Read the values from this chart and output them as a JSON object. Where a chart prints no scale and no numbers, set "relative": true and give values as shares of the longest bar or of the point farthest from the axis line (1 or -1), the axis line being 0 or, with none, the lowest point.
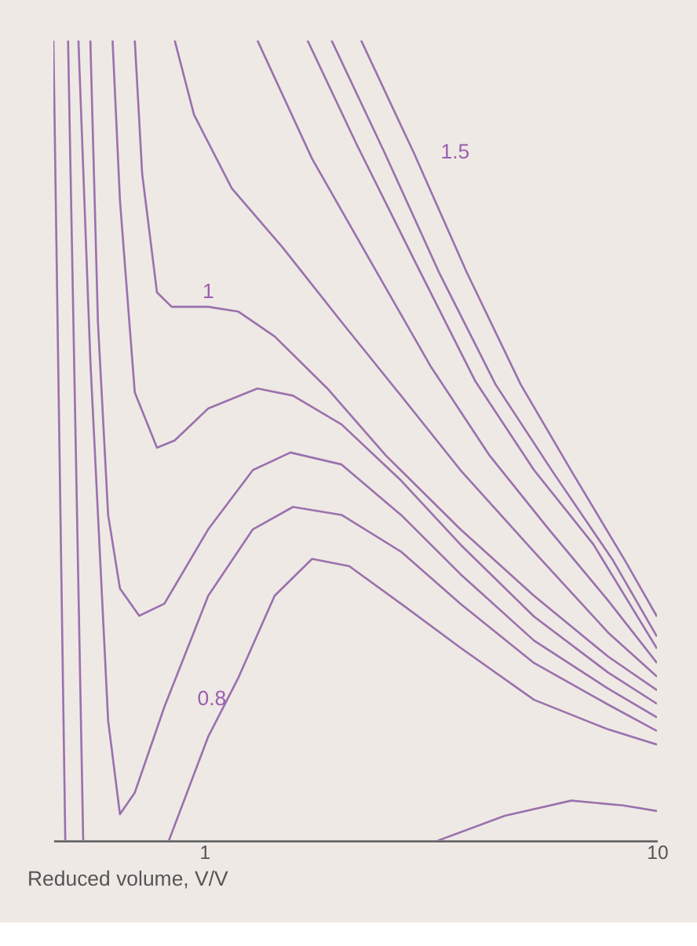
{
  "chart_data": {
    "type": "line",
    "relative": true,
    "xlabel": "Reduced volume, V/V",
    "log": "x",
    "xlim": [
      0.464,
      10
    ],
    "xticks": [
      1,
      10
    ],
    "grid": false,
    "legend": false,
    "marker": "none",
    "line_style": "solid",
    "series": [
      {
        "color": "#9a72ad",
        "x": [
          0.464,
          0.493,
          1.0,
          3.28,
          4.61,
          6.47,
          8.41,
          10
        ],
        "values": [
          1,
          0,
          null,
          0,
          0.031,
          0.05,
          0.044,
          0.037
        ]
      },
      {
        "name": "0.8",
        "color": "#9a72ad",
        "x": [
          0.5,
          0.54,
          0.7,
          0.835,
          1.02,
          1.19,
          1.43,
          1.73,
          2.09,
          2.72,
          3.68,
          5.35,
          7.8,
          10
        ],
        "values": [
          1,
          0,
          null,
          0,
          0.13,
          0.204,
          0.306,
          0.352,
          0.343,
          0.296,
          0.241,
          0.176,
          0.139,
          0.12
        ]
      },
      {
        "color": "#9a72ad",
        "x": [
          0.527,
          0.56,
          0.613,
          0.651,
          0.702,
          0.816,
          1.02,
          1.28,
          1.57,
          2.01,
          2.72,
          3.68,
          5.35,
          7.8,
          10
        ],
        "values": [
          1,
          0.6,
          0.15,
          0.033,
          0.06,
          0.167,
          0.306,
          0.389,
          0.417,
          0.407,
          0.361,
          0.296,
          0.222,
          0.17,
          0.137
        ]
      },
      {
        "color": "#9a72ad",
        "x": [
          0.56,
          0.582,
          0.613,
          0.651,
          0.718,
          0.816,
          1.02,
          1.28,
          1.55,
          2.01,
          2.72,
          3.68,
          5.35,
          7.8,
          10
        ],
        "values": [
          1,
          0.648,
          0.407,
          0.315,
          0.281,
          0.296,
          0.389,
          0.463,
          0.485,
          0.47,
          0.407,
          0.333,
          0.25,
          0.19,
          0.154
        ]
      },
      {
        "color": "#9a72ad",
        "x": [
          0.627,
          0.651,
          0.702,
          0.786,
          0.86,
          1.02,
          1.31,
          1.57,
          2.01,
          2.72,
          3.68,
          5.35,
          7.8,
          10
        ],
        "values": [
          1,
          0.8,
          0.56,
          0.491,
          0.5,
          0.54,
          0.565,
          0.556,
          0.52,
          0.45,
          0.37,
          0.28,
          0.21,
          0.171
        ]
      },
      {
        "name": "1",
        "color": "#9a72ad",
        "x": [
          0.702,
          0.729,
          0.786,
          0.847,
          1.02,
          1.19,
          1.43,
          1.87,
          2.52,
          3.68,
          5.35,
          7.8,
          10
        ],
        "values": [
          1,
          0.833,
          0.685,
          0.667,
          0.667,
          0.661,
          0.63,
          0.565,
          0.481,
          0.389,
          0.306,
          0.23,
          0.188
        ]
      },
      {
        "color": "#9a72ad",
        "x": [
          0.86,
          0.949,
          1.15,
          1.49,
          2.01,
          2.72,
          3.68,
          5.35,
          7.8,
          10
        ],
        "values": [
          1,
          0.907,
          0.815,
          0.741,
          0.648,
          0.556,
          0.463,
          0.361,
          0.26,
          0.205
        ]
      },
      {
        "color": "#9a72ad",
        "x": [
          1.31,
          1.73,
          2.34,
          3.16,
          4.27,
          5.77,
          7.8,
          10
        ],
        "values": [
          1,
          0.852,
          0.722,
          0.593,
          0.481,
          0.389,
          0.3,
          0.222
        ]
      },
      {
        "color": "#9a72ad",
        "x": [
          1.69,
          2.17,
          2.93,
          3.97,
          5.35,
          7.24,
          10
        ],
        "values": [
          1,
          0.87,
          0.722,
          0.574,
          0.463,
          0.37,
          0.24
        ]
      },
      {
        "color": "#9a72ad",
        "x": [
          1.91,
          2.5,
          3.3,
          4.4,
          5.9,
          8.0,
          10
        ],
        "values": [
          1,
          0.86,
          0.71,
          0.57,
          0.46,
          0.35,
          0.255
        ]
      },
      {
        "name": "1.5",
        "color": "#9a72ad",
        "x": [
          2.22,
          2.9,
          3.8,
          5.0,
          6.5,
          8.5,
          10
        ],
        "values": [
          1,
          0.86,
          0.71,
          0.57,
          0.46,
          0.35,
          0.28
        ]
      }
    ]
  }
}
